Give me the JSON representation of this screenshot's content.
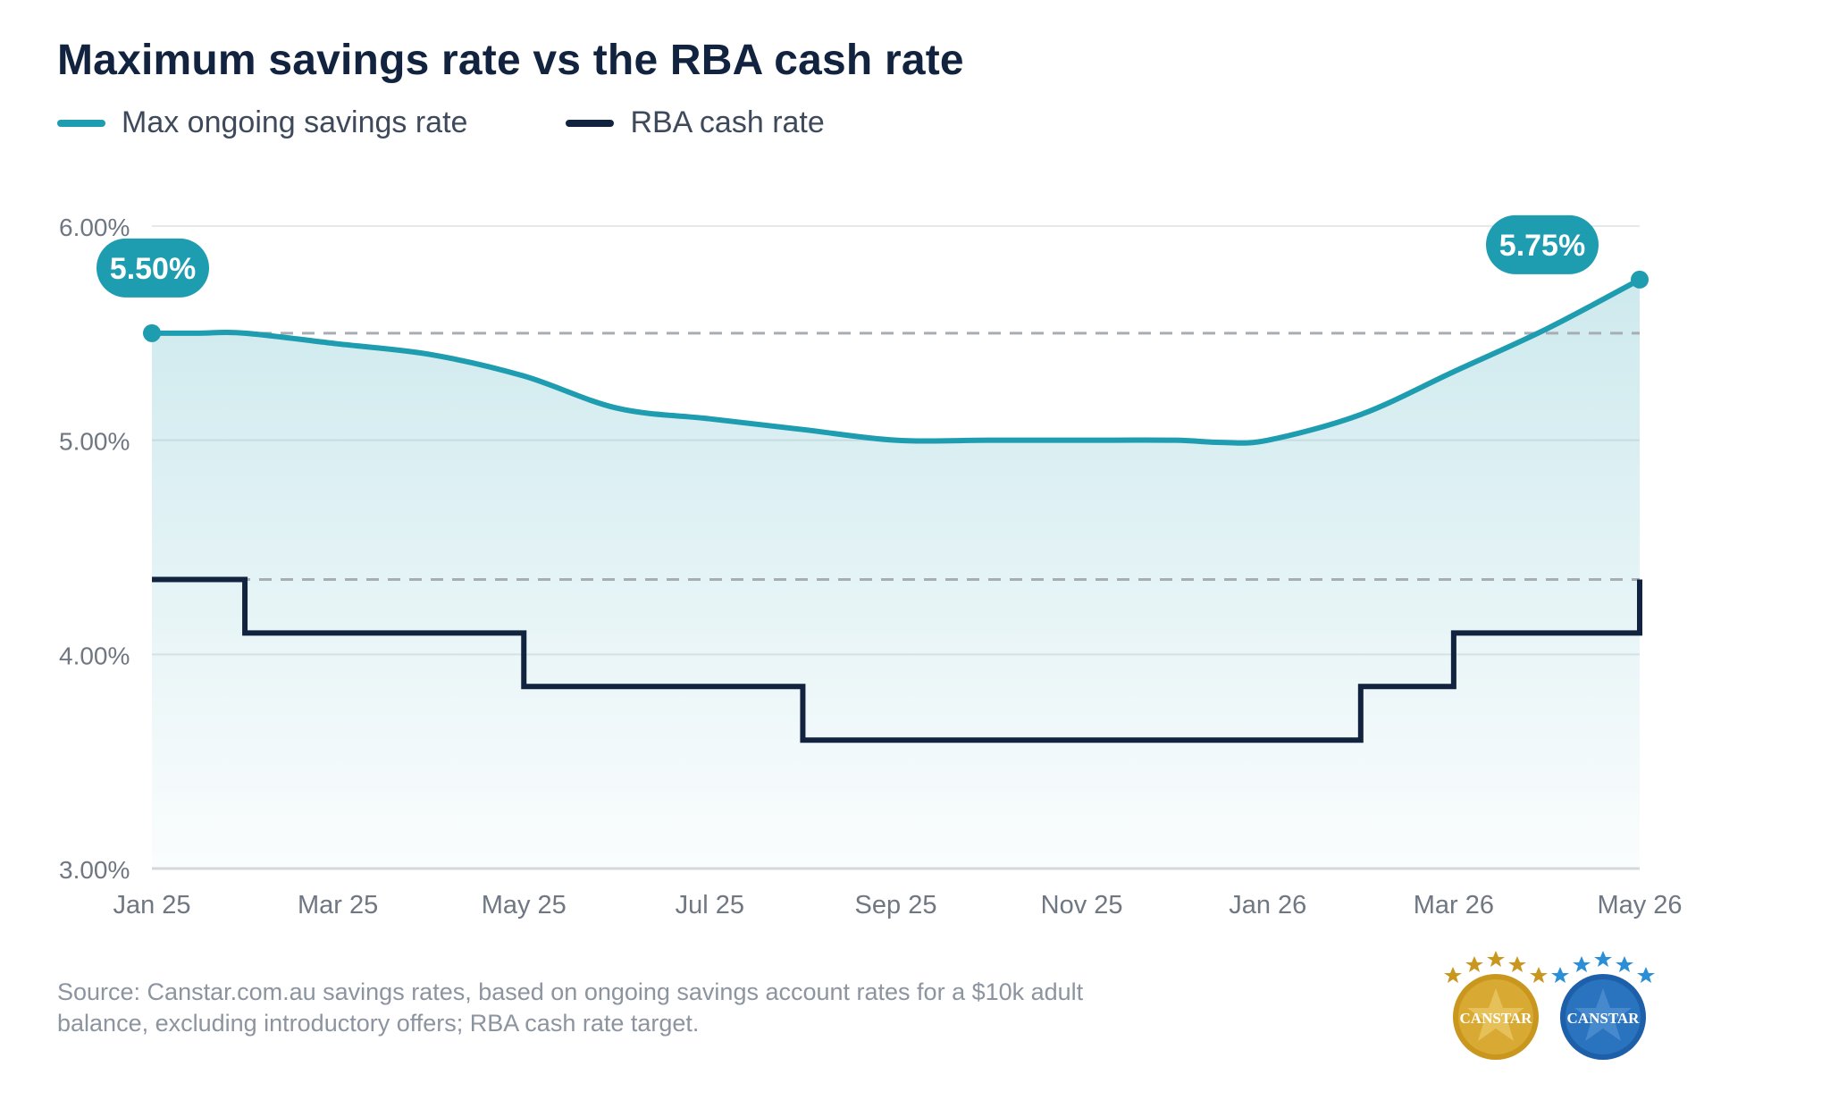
{
  "chart_data": {
    "type": "line",
    "title": "Maximum savings rate vs the RBA cash rate",
    "xlabel": "",
    "ylabel": "",
    "x_ticks": [
      "Jan 25",
      "Mar 25",
      "May 25",
      "Jul 25",
      "Sep 25",
      "Nov 25",
      "Jan 26",
      "Mar 26",
      "May 26"
    ],
    "y_ticks": [
      "6.00%",
      "5.00%",
      "4.00%",
      "3.00%"
    ],
    "ylim": [
      3.0,
      6.0
    ],
    "xlim_months": [
      0,
      16
    ],
    "grid": "horizontal",
    "legend_position": "top-left",
    "series": [
      {
        "name": "Max ongoing savings rate",
        "color": "#1e9cb0",
        "style": "smooth line with shaded area",
        "x": [
          0,
          0.5,
          1,
          2,
          3,
          4,
          5,
          6,
          7,
          8,
          9,
          10,
          11,
          11.5,
          12,
          13,
          14,
          15,
          16
        ],
        "values": [
          5.5,
          5.5,
          5.5,
          5.45,
          5.4,
          5.3,
          5.15,
          5.1,
          5.05,
          5.0,
          5.0,
          5.0,
          5.0,
          4.99,
          5.0,
          5.12,
          5.32,
          5.52,
          5.75
        ]
      },
      {
        "name": "RBA cash rate",
        "color": "#12233f",
        "style": "step",
        "x": [
          0,
          1,
          4,
          7,
          13,
          14,
          16
        ],
        "values": [
          4.35,
          4.1,
          3.85,
          3.6,
          3.85,
          4.1,
          4.35
        ]
      }
    ],
    "reference_lines": [
      5.5,
      4.35
    ],
    "annotations": [
      {
        "label": "5.50%",
        "x": 0,
        "y": 5.5
      },
      {
        "label": "5.75%",
        "x": 16,
        "y": 5.75
      }
    ]
  },
  "source_text": "Source: Canstar.com.au savings rates, based on ongoing savings account rates for a $10k adult balance, excluding introductory offers; RBA cash rate target.",
  "badges": [
    {
      "text": "CANSTAR",
      "color": "#c9961e",
      "icon": "gold-star-badge-icon"
    },
    {
      "text": "CANSTAR",
      "color": "#1d5fa8",
      "icon": "blue-star-badge-icon"
    }
  ]
}
